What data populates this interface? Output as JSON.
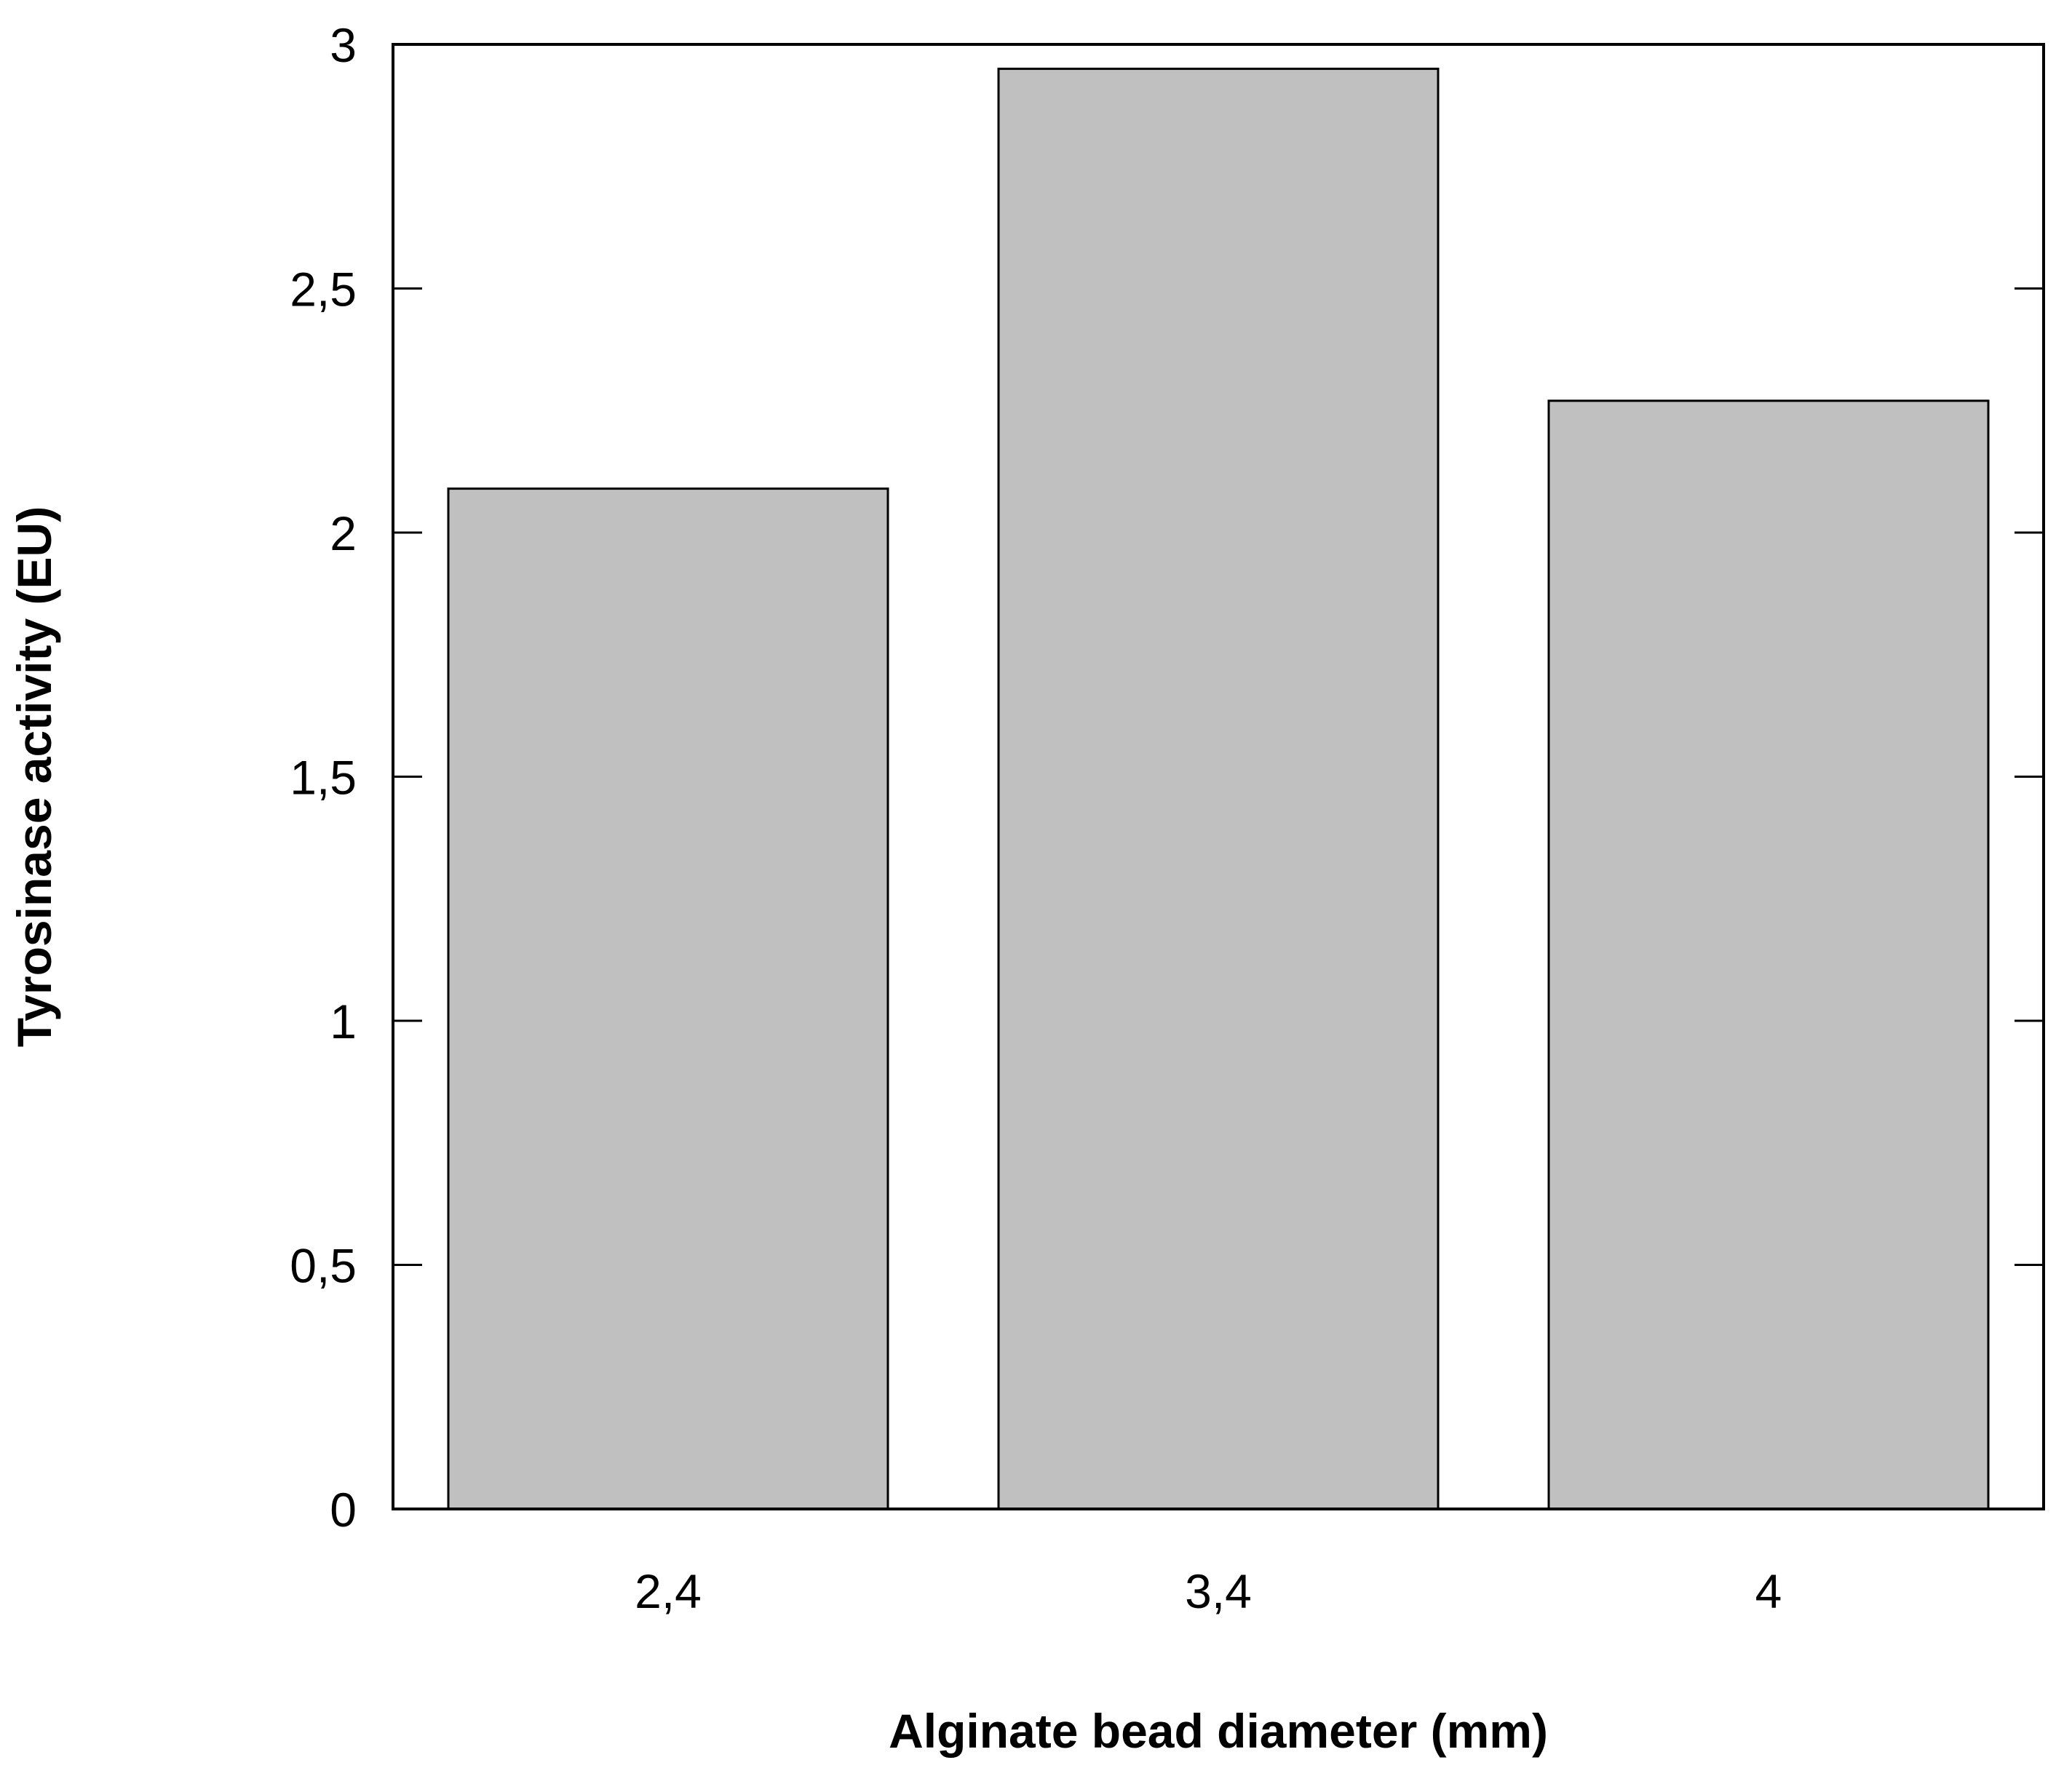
{
  "chart_data": {
    "type": "bar",
    "title": "",
    "xlabel": "Alginate bead diameter (mm)",
    "ylabel": "Tyrosinase activity (EU)",
    "categories": [
      "2,4",
      "3,4",
      "4"
    ],
    "values": [
      2.09,
      2.95,
      2.27
    ],
    "ylim": [
      0,
      3
    ],
    "yticks": [
      0,
      0.5,
      1,
      1.5,
      2,
      2.5,
      3
    ],
    "ytick_labels": [
      "0",
      "0,5",
      "1",
      "1,5",
      "2",
      "2,5",
      "3"
    ],
    "grid": false,
    "legend": "none",
    "colors": {
      "bar_fill": "#c0c0c0",
      "bar_stroke": "#000000",
      "axis": "#000000",
      "background": "#ffffff"
    }
  }
}
